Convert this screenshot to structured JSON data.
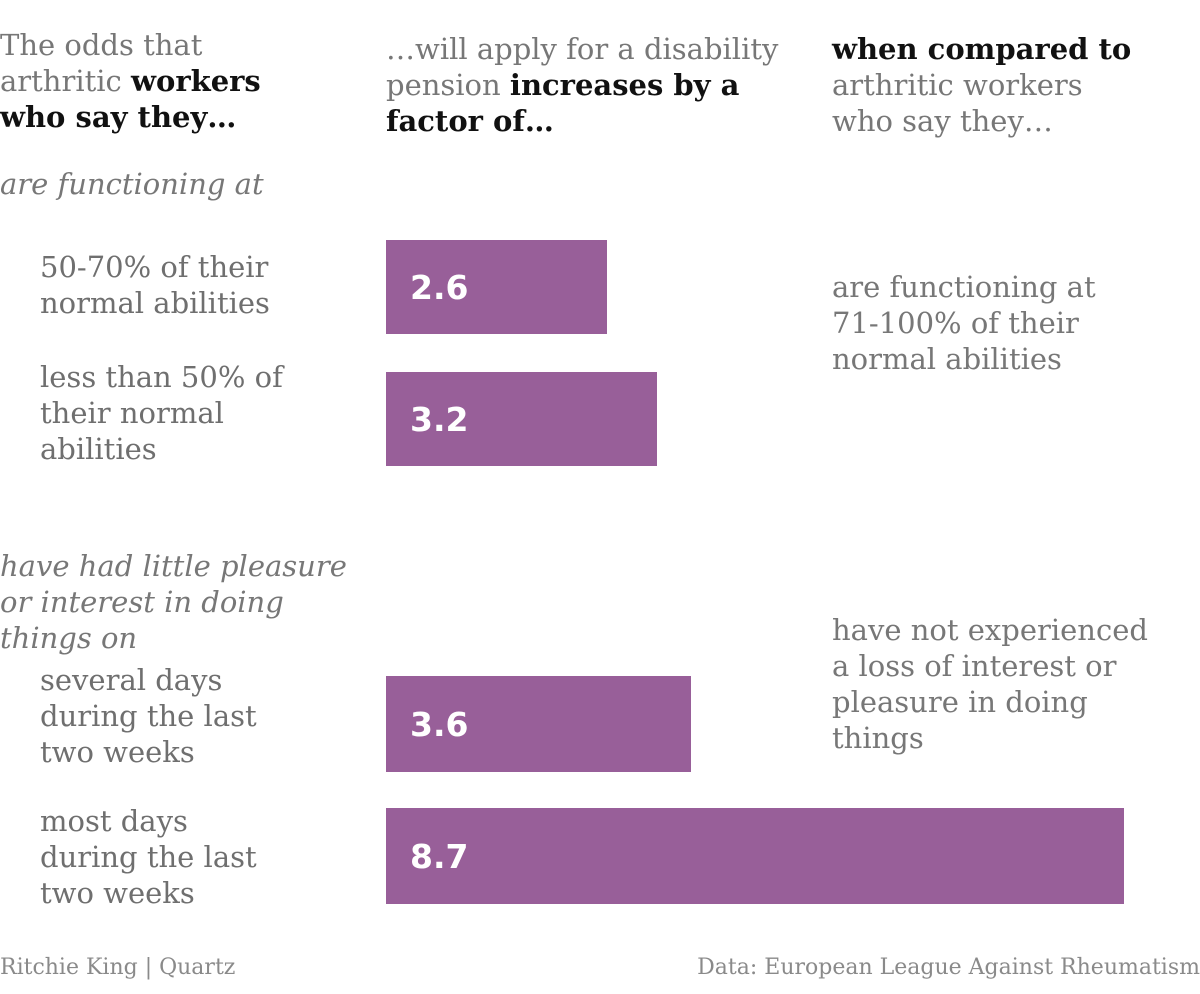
{
  "header": {
    "col1": {
      "pre": "The odds that arthritic ",
      "bold": "workers who say they…"
    },
    "col2": {
      "pre": "…will apply for a disability pension ",
      "bold": "increases by a factor of…"
    },
    "col3": {
      "bold": "when compared to",
      "post": " arthritic workers who say they…"
    }
  },
  "sections": [
    {
      "label": "are functioning at",
      "comparison": "are functioning at 71-100% of their normal abilities"
    },
    {
      "label": "have had little pleasure or interest in doing things on",
      "comparison": "have not experienced a loss of interest or pleasure in doing things"
    }
  ],
  "colors": {
    "bar": "#985f99",
    "bar_text": "#ffffff"
  },
  "chart_data": {
    "type": "bar",
    "orientation": "horizontal",
    "categories": [
      "50-70% of their normal abilities",
      "less than 50% of their normal abilities",
      "several days during the last two weeks",
      "most days during the last two weeks"
    ],
    "values": [
      2.6,
      3.2,
      3.6,
      8.7
    ],
    "value_labels": [
      "2.6",
      "3.2",
      "3.6",
      "8.7"
    ],
    "xlim": [
      0,
      8.7
    ],
    "grid": false
  },
  "footer": {
    "credit": "Ritchie King | Quartz",
    "source": "Data: European League Against Rheumatism"
  }
}
